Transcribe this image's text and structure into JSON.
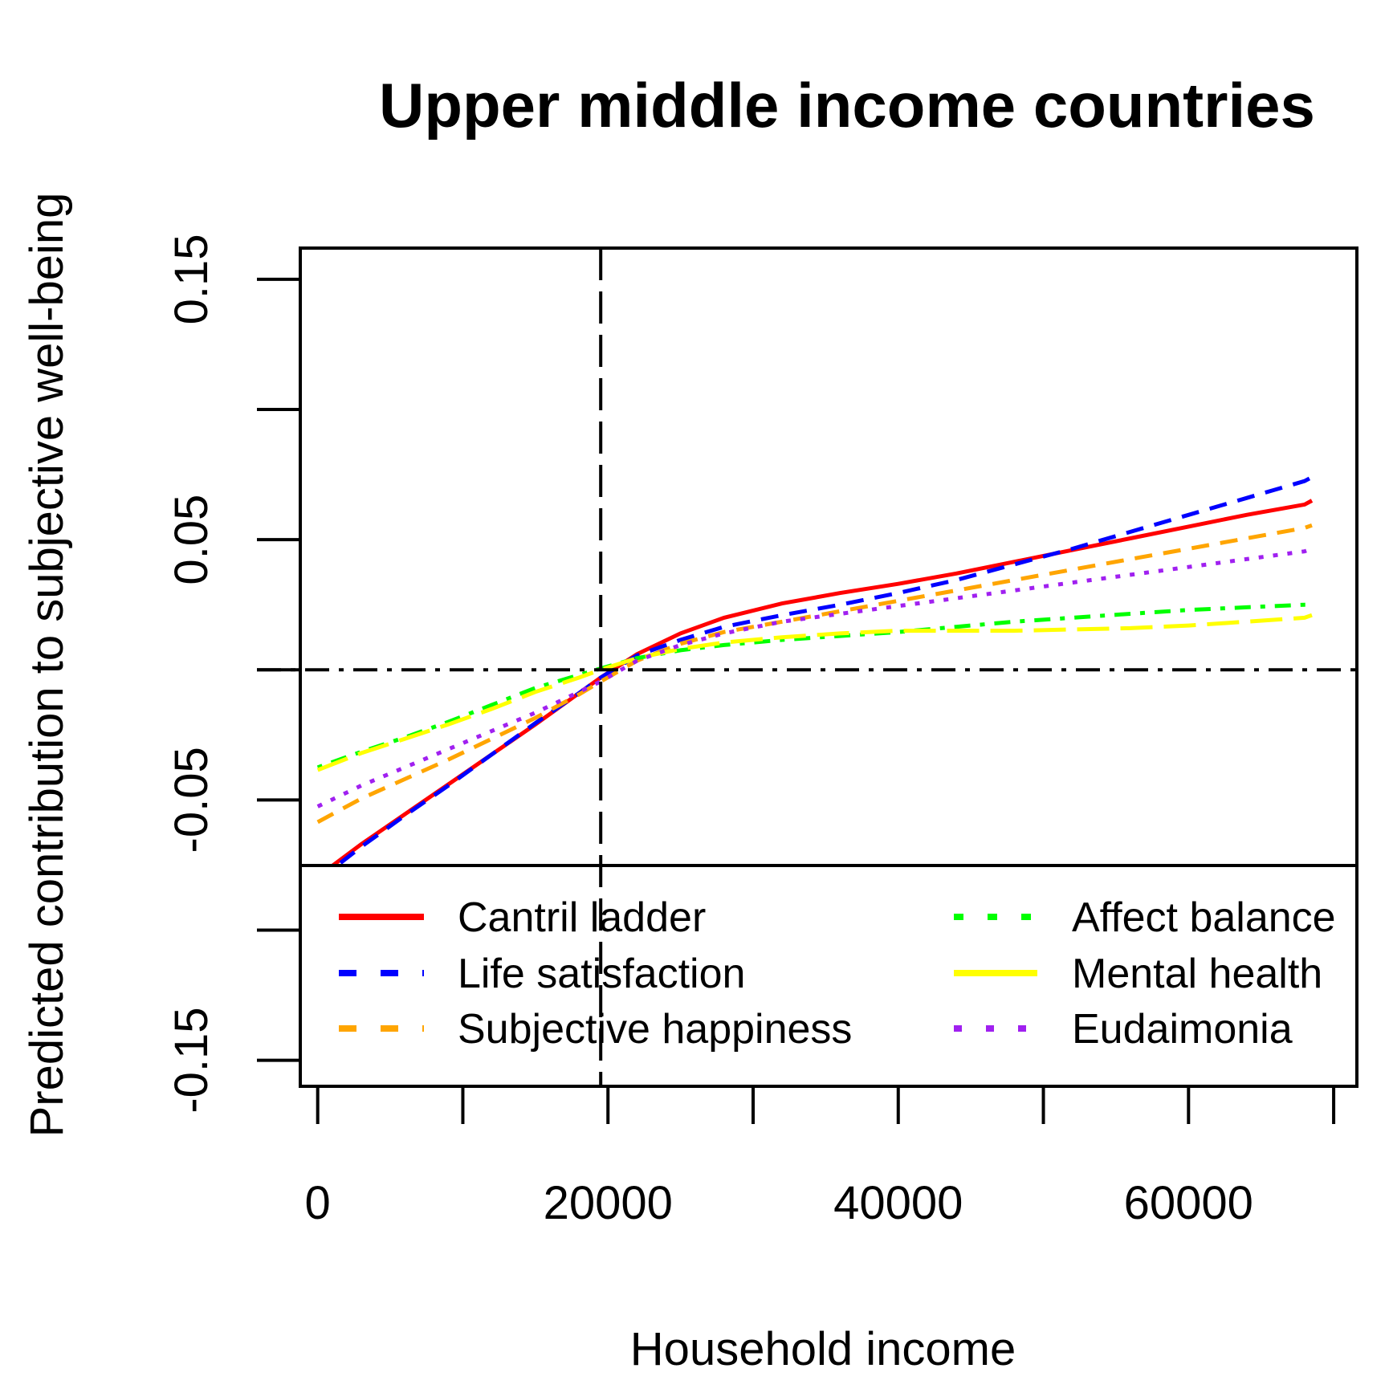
{
  "chart_data": {
    "type": "line",
    "title": "Upper middle income countries",
    "xlabel": "Household income",
    "ylabel": "Predicted contribution to subjective well-being",
    "xlim": [
      -1200,
      71600
    ],
    "ylim": [
      -0.16,
      0.162
    ],
    "x_ticks": [
      0,
      10000,
      20000,
      30000,
      40000,
      50000,
      60000,
      70000
    ],
    "x_tick_labels": [
      "0",
      "",
      "20000",
      "",
      "40000",
      "",
      "60000",
      ""
    ],
    "y_ticks": [
      -0.15,
      -0.1,
      -0.05,
      0,
      0.05,
      0.1,
      0.15
    ],
    "y_tick_labels": [
      "-0.15",
      "",
      "-0.05",
      "",
      "0.05",
      "",
      "0.15"
    ],
    "grid": false,
    "reference_lines": {
      "vertical_x": 19500,
      "horizontal_y": 0
    },
    "legend": {
      "placement": "bottom",
      "columns": 2
    },
    "series": [
      {
        "name": "Cantril ladder",
        "color": "#ff0000",
        "dash": "solid",
        "x": [
          0,
          3000,
          6000,
          9000,
          12000,
          15000,
          18000,
          19500,
          22000,
          25000,
          28000,
          32000,
          36000,
          40000,
          44000,
          48000,
          52000,
          56000,
          60000,
          64000,
          68000,
          68500
        ],
        "y": [
          -0.0795,
          -0.067,
          -0.0555,
          -0.044,
          -0.0325,
          -0.021,
          -0.009,
          -0.003,
          0.006,
          0.014,
          0.02,
          0.0255,
          0.0295,
          0.033,
          0.037,
          0.0415,
          0.046,
          0.0505,
          0.055,
          0.0595,
          0.0635,
          0.065
        ]
      },
      {
        "name": "Life satisfaction",
        "color": "#0000ff",
        "dash": "dashed",
        "x": [
          0,
          3000,
          6000,
          9000,
          12000,
          15000,
          18000,
          19500,
          22000,
          25000,
          28000,
          32000,
          36000,
          40000,
          44000,
          48000,
          52000,
          56000,
          60000,
          64000,
          68000,
          68500
        ],
        "y": [
          -0.081,
          -0.068,
          -0.056,
          -0.0445,
          -0.0325,
          -0.0205,
          -0.009,
          -0.003,
          0.0055,
          0.0115,
          0.0165,
          0.021,
          0.025,
          0.0295,
          0.0345,
          0.0405,
          0.0465,
          0.053,
          0.0595,
          0.066,
          0.0725,
          0.074
        ]
      },
      {
        "name": "Subjective happiness",
        "color": "#ffa500",
        "dash": "dashed",
        "x": [
          0,
          3000,
          6000,
          9000,
          12000,
          15000,
          18000,
          19500,
          22000,
          25000,
          28000,
          32000,
          36000,
          40000,
          44000,
          48000,
          52000,
          56000,
          60000,
          64000,
          68000,
          68500
        ],
        "y": [
          -0.0585,
          -0.0495,
          -0.042,
          -0.0345,
          -0.0265,
          -0.0185,
          -0.0095,
          -0.0045,
          0.0035,
          0.01,
          0.0145,
          0.0185,
          0.0225,
          0.0265,
          0.0305,
          0.0345,
          0.0385,
          0.0425,
          0.0465,
          0.0505,
          0.0545,
          0.0555
        ]
      },
      {
        "name": "Affect balance",
        "color": "#00ff00",
        "dash": "dotdash",
        "x": [
          0,
          3000,
          6000,
          9000,
          12000,
          15000,
          18000,
          19500,
          22000,
          25000,
          28000,
          32000,
          36000,
          40000,
          44000,
          48000,
          52000,
          56000,
          60000,
          64000,
          68000,
          68500
        ],
        "y": [
          -0.0375,
          -0.0315,
          -0.026,
          -0.02,
          -0.0135,
          -0.007,
          -0.002,
          0.0005,
          0.0045,
          0.0075,
          0.0095,
          0.0115,
          0.013,
          0.0145,
          0.0165,
          0.0185,
          0.02,
          0.0215,
          0.023,
          0.024,
          0.025,
          0.025
        ]
      },
      {
        "name": "Mental health",
        "color": "#ffff00",
        "dash": "longdash",
        "x": [
          0,
          3000,
          6000,
          9000,
          12000,
          15000,
          18000,
          19500,
          22000,
          25000,
          28000,
          32000,
          36000,
          40000,
          44000,
          48000,
          52000,
          56000,
          60000,
          64000,
          68000,
          68500
        ],
        "y": [
          -0.0385,
          -0.032,
          -0.0265,
          -0.021,
          -0.015,
          -0.0085,
          -0.003,
          0,
          0.0045,
          0.008,
          0.0105,
          0.0125,
          0.014,
          0.015,
          0.015,
          0.015,
          0.0155,
          0.016,
          0.017,
          0.0185,
          0.02,
          0.021
        ]
      },
      {
        "name": "Eudaimonia",
        "color": "#a020f0",
        "dash": "dotted",
        "x": [
          0,
          3000,
          6000,
          9000,
          12000,
          15000,
          18000,
          19500,
          22000,
          25000,
          28000,
          32000,
          36000,
          40000,
          44000,
          48000,
          52000,
          56000,
          60000,
          64000,
          68000,
          68500
        ],
        "y": [
          -0.0525,
          -0.0445,
          -0.0375,
          -0.0305,
          -0.0235,
          -0.0165,
          -0.0085,
          -0.0045,
          0.0035,
          0.0095,
          0.014,
          0.0185,
          0.0215,
          0.0245,
          0.0275,
          0.0305,
          0.0335,
          0.0365,
          0.0395,
          0.0425,
          0.0455,
          0.0465
        ]
      }
    ]
  }
}
